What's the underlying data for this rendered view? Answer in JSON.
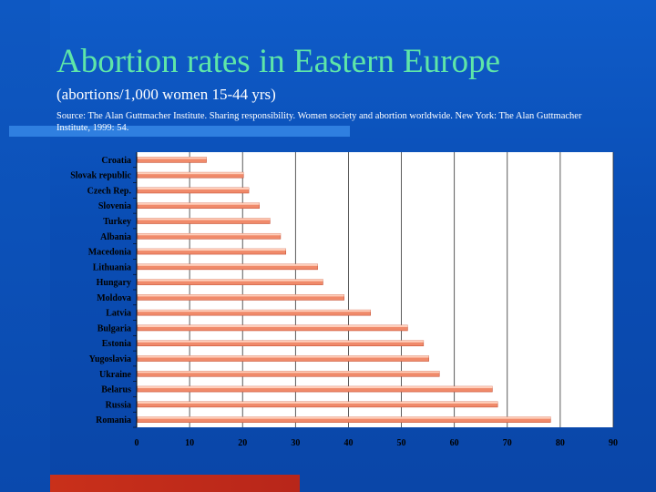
{
  "title": "Abortion rates in Eastern Europe",
  "subtitle": "(abortions/1,000 women 15-44 yrs)",
  "source": "Source: The Alan Guttmacher Institute. Sharing responsibility. Women society and abortion worldwide. New York: The Alan Guttmacher Institute, 1999: 54.",
  "colors": {
    "title": "#5ee6a8",
    "bar": "#f08a6a",
    "bar_highlight": "#ffd0bc",
    "plot_bg": "#ffffff",
    "grid": "#333333"
  },
  "chart_data": {
    "type": "bar",
    "orientation": "horizontal",
    "title": "",
    "xlabel": "",
    "ylabel": "",
    "xlim": [
      0,
      90
    ],
    "xticks": [
      0,
      10,
      20,
      30,
      40,
      50,
      60,
      70,
      80,
      90
    ],
    "grid": true,
    "legend": "none",
    "categories": [
      "Croatia",
      "Slovak republic",
      "Czech Rep.",
      "Slovenia",
      "Turkey",
      "Albania",
      "Macedonia",
      "Lithuania",
      "Hungary",
      "Moldova",
      "Latvia",
      "Bulgaria",
      "Estonia",
      "Yugoslavia",
      "Ukraine",
      "Belarus",
      "Russia",
      "Romania"
    ],
    "values": [
      13,
      20,
      21,
      23,
      25,
      27,
      28,
      34,
      35,
      39,
      44,
      51,
      54,
      55,
      57,
      67,
      68,
      78
    ]
  }
}
